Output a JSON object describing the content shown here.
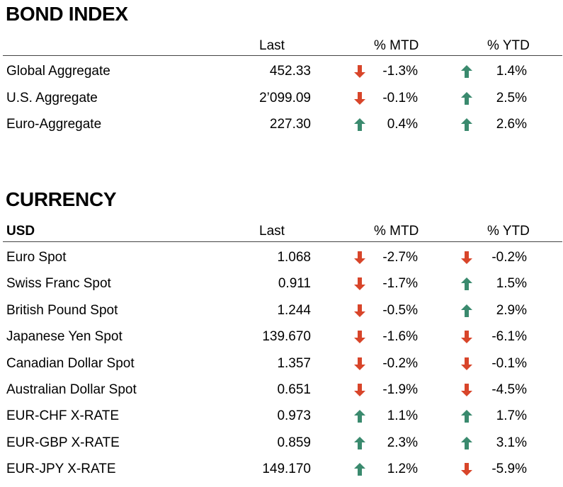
{
  "bond": {
    "title": "BOND INDEX",
    "headers": {
      "last": "Last",
      "mtd": "% MTD",
      "ytd": "% YTD"
    },
    "rows": [
      {
        "name": "Global Aggregate",
        "last": "452.33",
        "mtd": "-1.3%",
        "mtd_dir": "down",
        "ytd": "1.4%",
        "ytd_dir": "up"
      },
      {
        "name": "U.S. Aggregate",
        "last": "2’099.09",
        "mtd": "-0.1%",
        "mtd_dir": "down",
        "ytd": "2.5%",
        "ytd_dir": "up"
      },
      {
        "name": "Euro-Aggregate",
        "last": "227.30",
        "mtd": "0.4%",
        "mtd_dir": "up",
        "ytd": "2.6%",
        "ytd_dir": "up"
      }
    ]
  },
  "currency": {
    "title": "CURRENCY",
    "headers": {
      "base": "USD",
      "last": "Last",
      "mtd": "% MTD",
      "ytd": "% YTD"
    },
    "rows": [
      {
        "name": "Euro Spot",
        "last": "1.068",
        "mtd": "-2.7%",
        "mtd_dir": "down",
        "ytd": "-0.2%",
        "ytd_dir": "down"
      },
      {
        "name": "Swiss Franc Spot",
        "last": "0.911",
        "mtd": "-1.7%",
        "mtd_dir": "down",
        "ytd": "1.5%",
        "ytd_dir": "up"
      },
      {
        "name": "British Pound Spot",
        "last": "1.244",
        "mtd": "-0.5%",
        "mtd_dir": "down",
        "ytd": "2.9%",
        "ytd_dir": "up"
      },
      {
        "name": "Japanese Yen Spot",
        "last": "139.670",
        "mtd": "-1.6%",
        "mtd_dir": "down",
        "ytd": "-6.1%",
        "ytd_dir": "down"
      },
      {
        "name": "Canadian Dollar Spot",
        "last": "1.357",
        "mtd": "-0.2%",
        "mtd_dir": "down",
        "ytd": "-0.1%",
        "ytd_dir": "down"
      },
      {
        "name": "Australian Dollar Spot",
        "last": "0.651",
        "mtd": "-1.9%",
        "mtd_dir": "down",
        "ytd": "-4.5%",
        "ytd_dir": "down"
      },
      {
        "name": "EUR-CHF X-RATE",
        "last": "0.973",
        "mtd": "1.1%",
        "mtd_dir": "up",
        "ytd": "1.7%",
        "ytd_dir": "up"
      },
      {
        "name": "EUR-GBP X-RATE",
        "last": "0.859",
        "mtd": "2.3%",
        "mtd_dir": "up",
        "ytd": "3.1%",
        "ytd_dir": "up"
      },
      {
        "name": "EUR-JPY X-RATE",
        "last": "149.170",
        "mtd": "1.2%",
        "mtd_dir": "up",
        "ytd": "-5.9%",
        "ytd_dir": "down"
      }
    ]
  },
  "colors": {
    "up": "#3a8a6e",
    "down": "#d8452a",
    "rule": "#444444"
  },
  "icons": {
    "up": "up-arrow-icon",
    "down": "down-arrow-icon"
  }
}
